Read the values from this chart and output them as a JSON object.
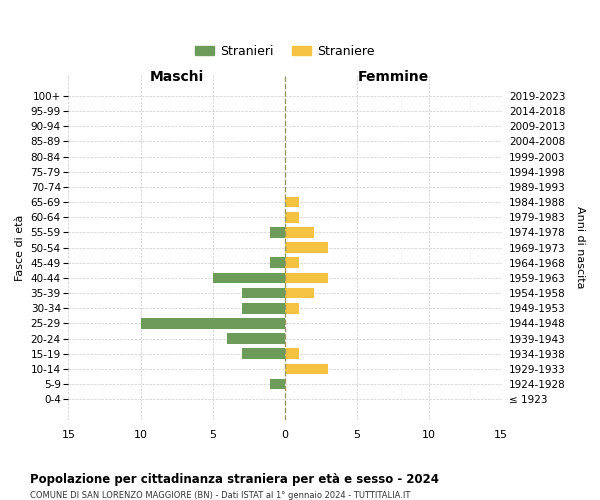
{
  "age_groups": [
    "100+",
    "95-99",
    "90-94",
    "85-89",
    "80-84",
    "75-79",
    "70-74",
    "65-69",
    "60-64",
    "55-59",
    "50-54",
    "45-49",
    "40-44",
    "35-39",
    "30-34",
    "25-29",
    "20-24",
    "15-19",
    "10-14",
    "5-9",
    "0-4"
  ],
  "birth_years": [
    "≤ 1923",
    "1924-1928",
    "1929-1933",
    "1934-1938",
    "1939-1943",
    "1944-1948",
    "1949-1953",
    "1954-1958",
    "1959-1963",
    "1964-1968",
    "1969-1973",
    "1974-1978",
    "1979-1983",
    "1984-1988",
    "1989-1993",
    "1994-1998",
    "1999-2003",
    "2004-2008",
    "2009-2013",
    "2014-2018",
    "2019-2023"
  ],
  "males": [
    0,
    0,
    0,
    0,
    0,
    0,
    0,
    0,
    0,
    -1,
    0,
    -1,
    -5,
    -3,
    -3,
    -10,
    -4,
    -3,
    0,
    -1,
    0
  ],
  "females": [
    0,
    0,
    0,
    0,
    0,
    0,
    0,
    1,
    1,
    2,
    3,
    1,
    3,
    2,
    1,
    0,
    0,
    1,
    3,
    0,
    0
  ],
  "male_color": "#6d9b5a",
  "female_color": "#f5c242",
  "male_label": "Stranieri",
  "female_label": "Straniere",
  "title": "Popolazione per cittadinanza straniera per età e sesso - 2024",
  "subtitle": "COMUNE DI SAN LORENZO MAGGIORE (BN) - Dati ISTAT al 1° gennaio 2024 - TUTTITALIA.IT",
  "xlabel_left": "Maschi",
  "xlabel_right": "Femmine",
  "ylabel_left": "Fasce di età",
  "ylabel_right": "Anni di nascita",
  "xlim": 15,
  "xticks": [
    -15,
    -10,
    -5,
    0,
    5,
    10,
    15
  ],
  "xticklabels": [
    "15",
    "10",
    "5",
    "0",
    "5",
    "10",
    "15"
  ],
  "background_color": "#ffffff",
  "grid_color": "#cccccc"
}
